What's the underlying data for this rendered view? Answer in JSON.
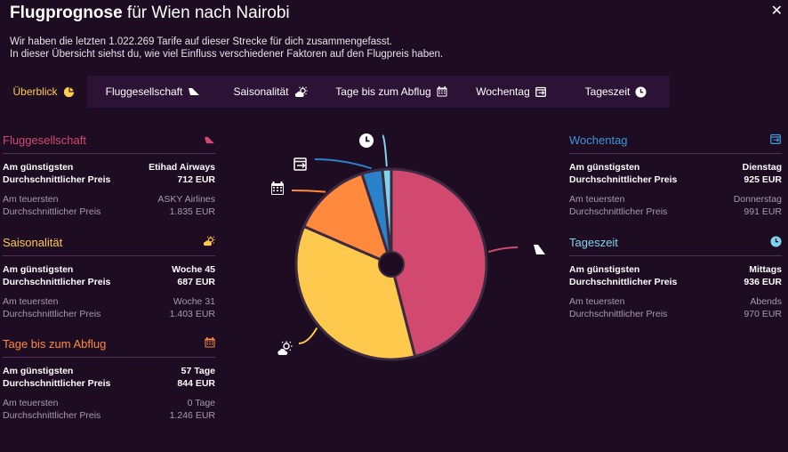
{
  "header": {
    "title_bold": "Flugprognose",
    "title_rest": " für Wien nach Nairobi",
    "intro_line1": "Wir haben die letzten 1.022.269 Tarife auf dieser Strecke für dich zusammengefasst.",
    "intro_line2": "In dieser Übersicht siehst du, wie viel Einfluss verschiedener Faktoren auf den Flugpreis haben.",
    "close_icon": "close-icon"
  },
  "tabs": [
    {
      "label": "Überblick",
      "icon": "pie-chart-icon",
      "active": true
    },
    {
      "label": "Fluggesellschaft",
      "icon": "airplane-tail-icon"
    },
    {
      "label": "Saisonalität",
      "icon": "sun-cloud-icon"
    },
    {
      "label": "Tage bis zum Abflug",
      "icon": "calendar-icon"
    },
    {
      "label": "Wochentag",
      "icon": "calendar-arrow-icon"
    },
    {
      "label": "Tageszeit",
      "icon": "clock-icon"
    }
  ],
  "labels": {
    "cheapest": "Am günstigsten",
    "priciest": "Am teuersten",
    "avg_price": "Durchschnittlicher Preis"
  },
  "panels": {
    "airline": {
      "title": "Fluggesellschaft",
      "color": "#d1496f",
      "cheapest": "Etihad Airways",
      "cheapest_price": "712 EUR",
      "priciest": "ASKY Airlines",
      "priciest_price": "1.835 EUR"
    },
    "season": {
      "title": "Saisonalität",
      "color": "#ffc94d",
      "cheapest": "Woche 45",
      "cheapest_price": "687 EUR",
      "priciest": "Woche 31",
      "priciest_price": "1.403 EUR"
    },
    "days": {
      "title": "Tage bis zum Abflug",
      "color": "#ff8a3d",
      "cheapest": "57 Tage",
      "cheapest_price": "844 EUR",
      "priciest": "0 Tage",
      "priciest_price": "1.246 EUR"
    },
    "weekday": {
      "title": "Wochentag",
      "color": "#3d95d6",
      "cheapest": "Dienstag",
      "cheapest_price": "925 EUR",
      "priciest": "Donnerstag",
      "priciest_price": "991 EUR"
    },
    "timeofday": {
      "title": "Tageszeit",
      "color": "#7fd4ee",
      "cheapest": "Mittags",
      "cheapest_price": "936 EUR",
      "priciest": "Abends",
      "priciest_price": "970 EUR"
    }
  },
  "chart_data": {
    "type": "pie",
    "series": [
      {
        "name": "Fluggesellschaft",
        "value": 46,
        "color": "#d1496f",
        "icon": "airplane-tail-icon"
      },
      {
        "name": "Saisonalität",
        "value": 35.5,
        "color": "#ffc94d",
        "icon": "sun-cloud-icon"
      },
      {
        "name": "Tage bis zum Abflug",
        "value": 13.5,
        "color": "#ff8a3d",
        "icon": "calendar-icon"
      },
      {
        "name": "Wochentag",
        "value": 3.5,
        "color": "#2a83c9",
        "icon": "calendar-arrow-icon"
      },
      {
        "name": "Tageszeit",
        "value": 1.5,
        "color": "#7fd4ee",
        "icon": "clock-icon"
      }
    ]
  }
}
